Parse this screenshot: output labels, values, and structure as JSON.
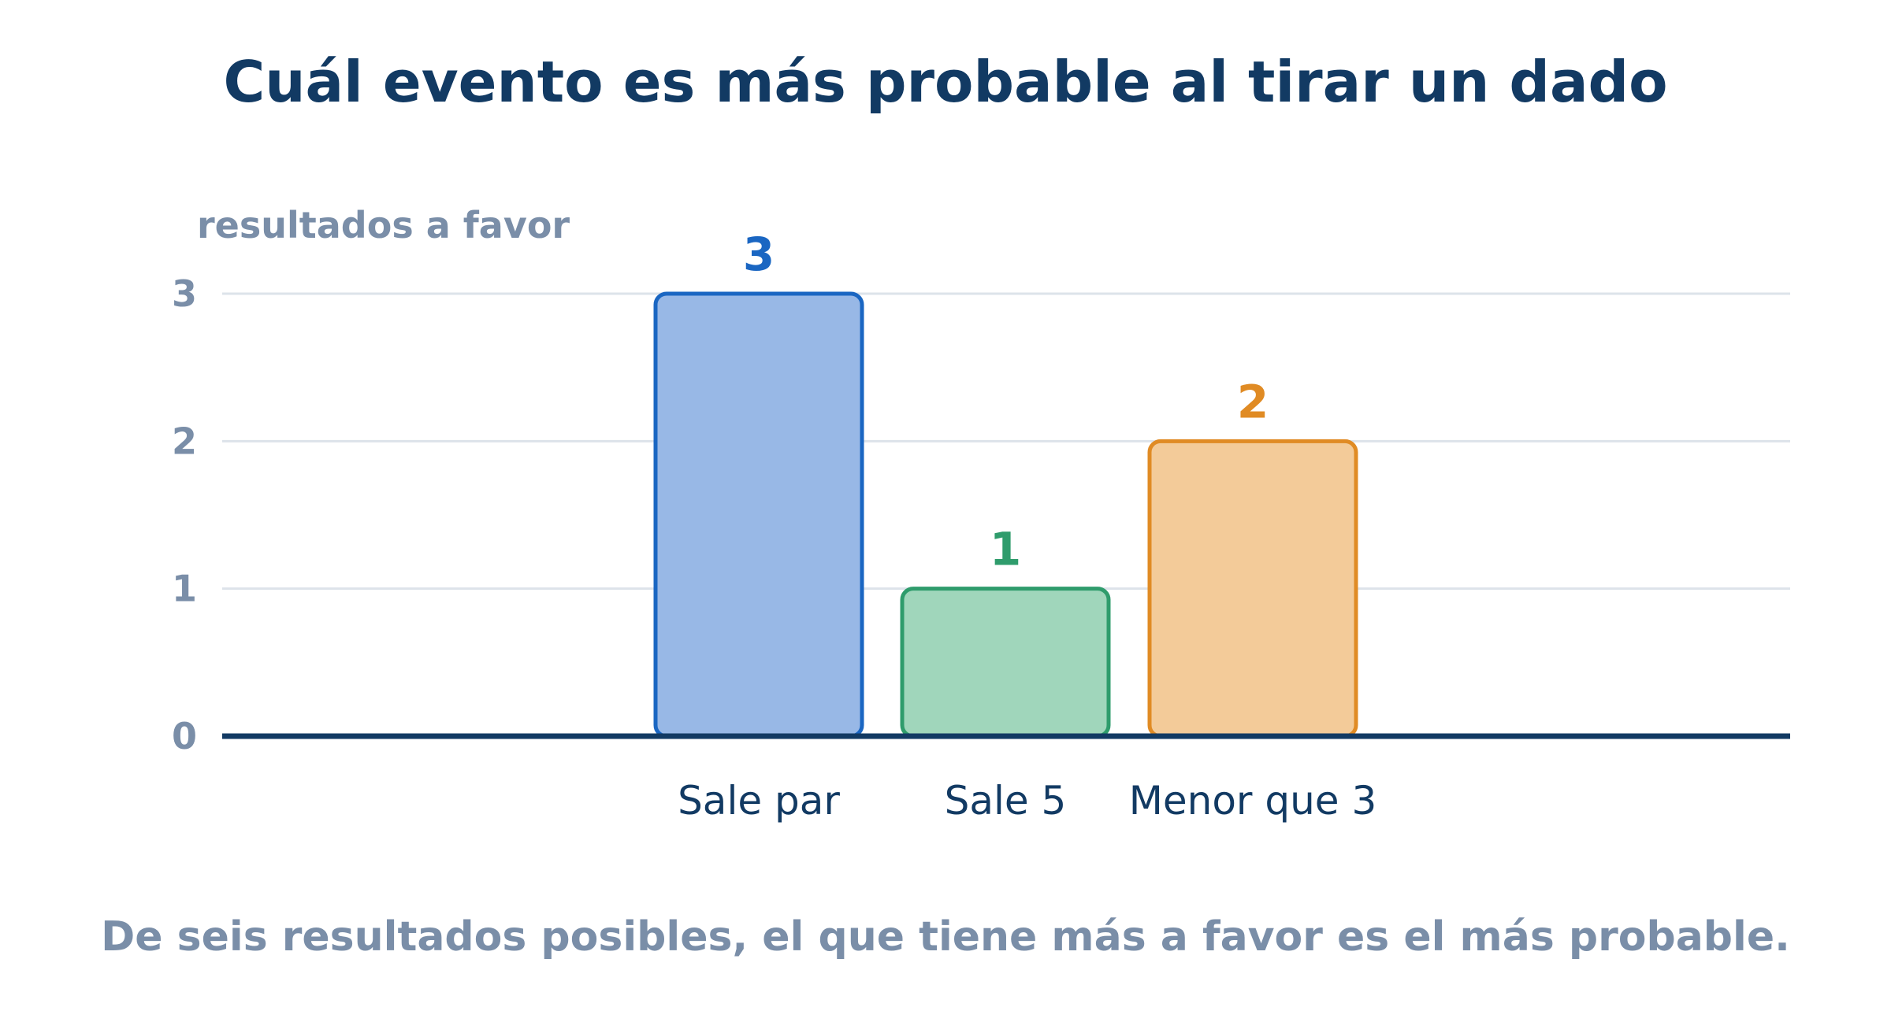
{
  "chart_data": {
    "type": "bar",
    "title": "Cuál evento es más probable al tirar un dado",
    "subtitle": "De seis resultados posibles, el que tiene más a favor es el más probable.",
    "ylabel": "resultados a favor",
    "xlabel": "",
    "categories": [
      "Sale par",
      "Sale 5",
      "Menor que 3"
    ],
    "values": [
      3,
      1,
      2
    ],
    "value_labels": [
      "3",
      "1",
      "2"
    ],
    "ylim": [
      0,
      3
    ],
    "yticks": [
      "0",
      "1",
      "2",
      "3"
    ],
    "grid": true,
    "colors": {
      "fills": [
        "#98b8e6",
        "#a0d6bb",
        "#f3cb99"
      ],
      "strokes": [
        "#1a66c2",
        "#2f9c6c",
        "#e08b24"
      ],
      "grid": "#dde3ea",
      "axis": "#123a63"
    }
  }
}
